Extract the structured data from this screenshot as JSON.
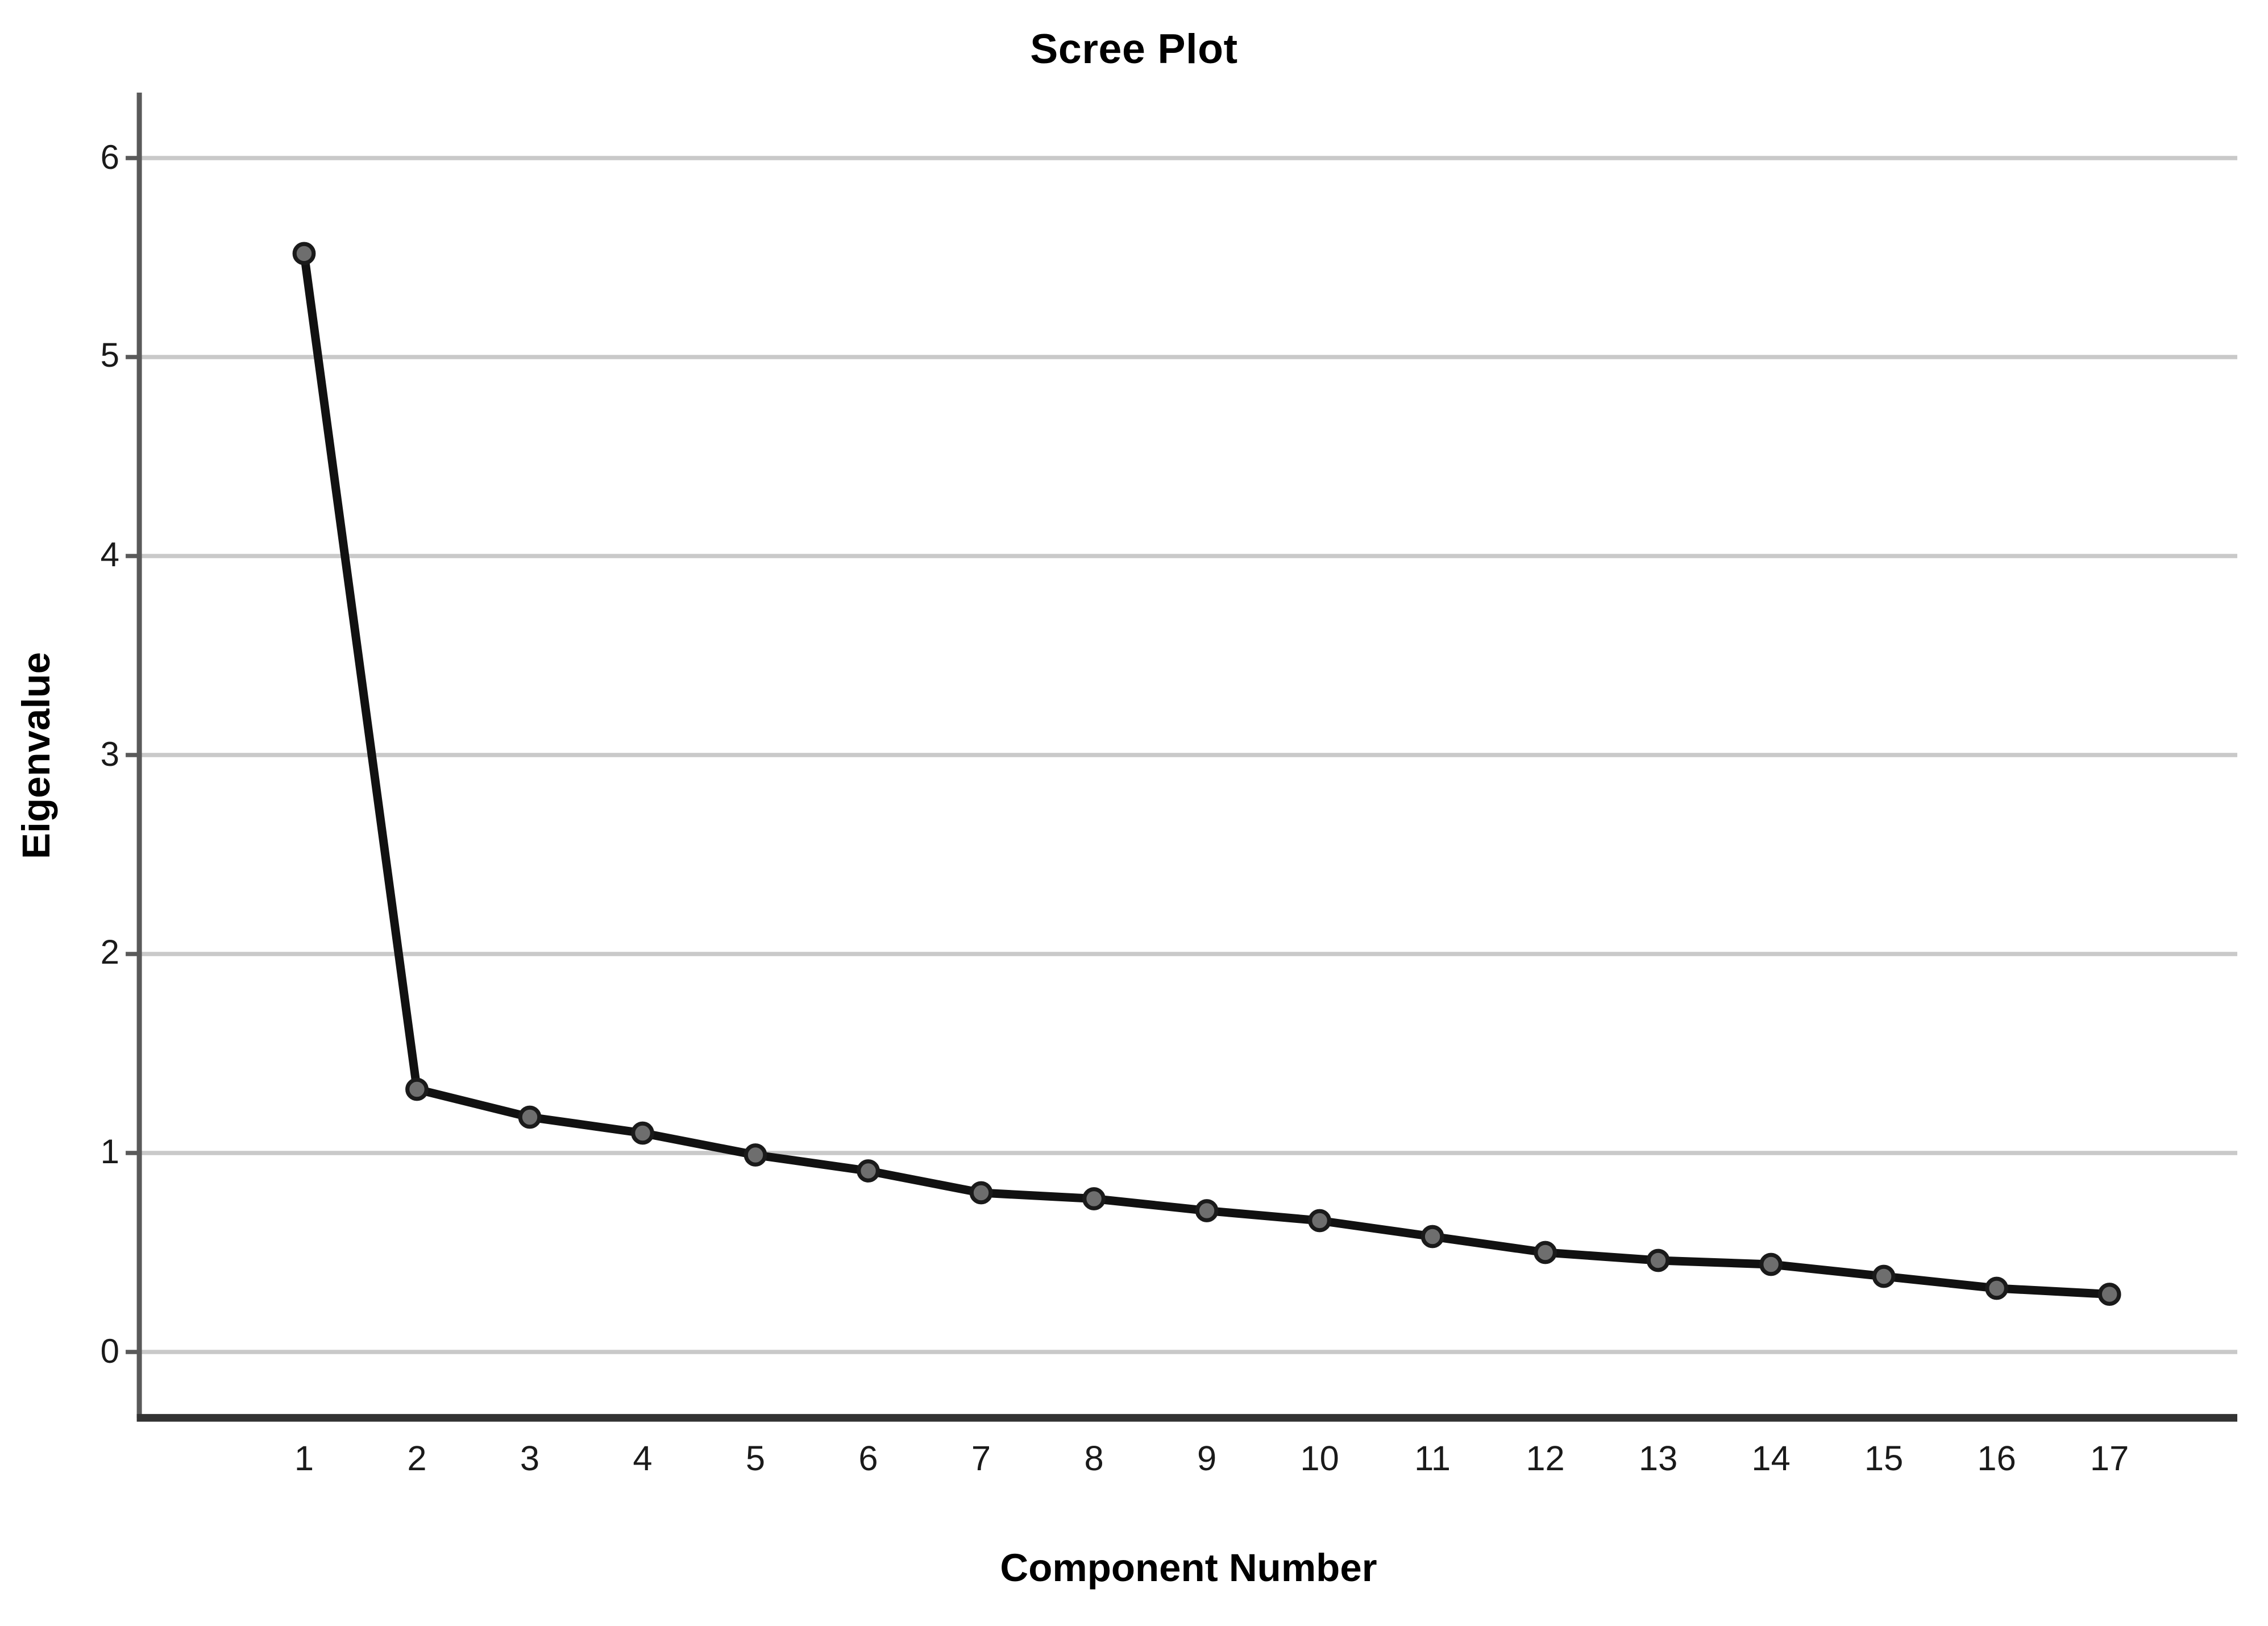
{
  "page": {
    "background": "#ffffff"
  },
  "chart_data": {
    "type": "line",
    "title": "Scree Plot",
    "xlabel": "Component Number",
    "ylabel": "Eigenvalue",
    "categories": [
      1,
      2,
      3,
      4,
      5,
      6,
      7,
      8,
      9,
      10,
      11,
      12,
      13,
      14,
      15,
      16,
      17
    ],
    "series": [
      {
        "name": "Eigenvalue",
        "values": [
          5.52,
          1.32,
          1.18,
          1.1,
          0.99,
          0.91,
          0.8,
          0.77,
          0.71,
          0.66,
          0.58,
          0.5,
          0.46,
          0.44,
          0.38,
          0.32,
          0.29
        ]
      }
    ],
    "ylim": [
      0,
      6
    ],
    "yticks": [
      0,
      1,
      2,
      3,
      4,
      5,
      6
    ],
    "grid": "horizontal-on",
    "legend_position": "none",
    "colors": {
      "line": "#111111",
      "marker_fill": "#6e6e6e",
      "marker_stroke": "#1a1a1a",
      "gridline": "#c9c9c9",
      "y_axis": "#5a5a5a",
      "x_axis": "#333333",
      "text": "#000000"
    }
  }
}
